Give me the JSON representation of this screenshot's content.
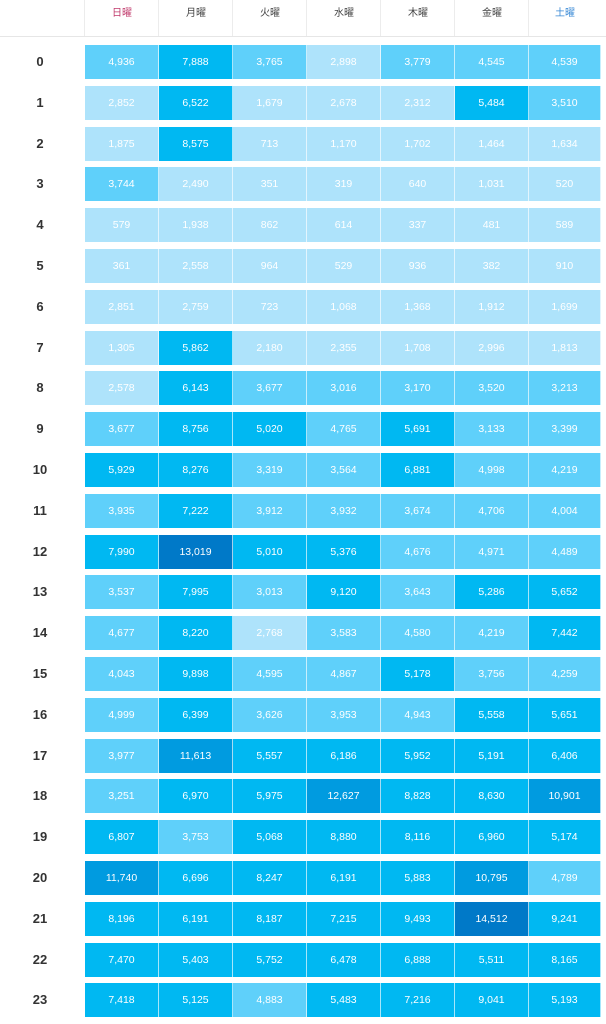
{
  "chart_data": {
    "type": "heatmap",
    "x": [
      "日曜",
      "月曜",
      "火曜",
      "水曜",
      "木曜",
      "金曜",
      "土曜"
    ],
    "y": [
      "0",
      "1",
      "2",
      "3",
      "4",
      "5",
      "6",
      "7",
      "8",
      "9",
      "10",
      "11",
      "12",
      "13",
      "14",
      "15",
      "16",
      "17",
      "18",
      "19",
      "20",
      "21",
      "22",
      "23"
    ],
    "values": [
      [
        4936,
        7888,
        3765,
        2898,
        3779,
        4545,
        4539
      ],
      [
        2852,
        6522,
        1679,
        2678,
        2312,
        5484,
        3510
      ],
      [
        1875,
        8575,
        713,
        1170,
        1702,
        1464,
        1634
      ],
      [
        3744,
        2490,
        351,
        319,
        640,
        1031,
        520
      ],
      [
        579,
        1938,
        862,
        614,
        337,
        481,
        589
      ],
      [
        361,
        2558,
        964,
        529,
        936,
        382,
        910
      ],
      [
        2851,
        2759,
        723,
        1068,
        1368,
        1912,
        1699
      ],
      [
        1305,
        5862,
        2180,
        2355,
        1708,
        2996,
        1813
      ],
      [
        2578,
        6143,
        3677,
        3016,
        3170,
        3520,
        3213
      ],
      [
        3677,
        8756,
        5020,
        4765,
        5691,
        3133,
        3399
      ],
      [
        5929,
        8276,
        3319,
        3564,
        6881,
        4998,
        4219
      ],
      [
        3935,
        7222,
        3912,
        3932,
        3674,
        4706,
        4004
      ],
      [
        7990,
        13019,
        5010,
        5376,
        4676,
        4971,
        4489
      ],
      [
        3537,
        7995,
        3013,
        9120,
        3643,
        5286,
        5652
      ],
      [
        4677,
        8220,
        2768,
        3583,
        4580,
        4219,
        7442
      ],
      [
        4043,
        9898,
        4595,
        4867,
        5178,
        3756,
        4259
      ],
      [
        4999,
        6399,
        3626,
        3953,
        4943,
        5558,
        5651
      ],
      [
        3977,
        11613,
        5557,
        6186,
        5952,
        5191,
        6406
      ],
      [
        3251,
        6970,
        5975,
        12627,
        8828,
        8630,
        10901
      ],
      [
        6807,
        3753,
        5068,
        8880,
        8116,
        6960,
        5174
      ],
      [
        11740,
        6696,
        8247,
        6191,
        5883,
        10795,
        4789
      ],
      [
        8196,
        6191,
        8187,
        7215,
        9493,
        14512,
        9241
      ],
      [
        7470,
        5403,
        5752,
        6478,
        6888,
        5511,
        8165
      ],
      [
        7418,
        5125,
        4883,
        5483,
        7216,
        9041,
        5193
      ]
    ],
    "colors": {
      "light": "#aee3fb",
      "mid": "#5fd0fa",
      "strong": "#00b8f2",
      "darker": "#009be0",
      "darkest": "#0079c8",
      "sunday_label": "#c0396b",
      "saturday_label": "#3a8ad6"
    }
  }
}
